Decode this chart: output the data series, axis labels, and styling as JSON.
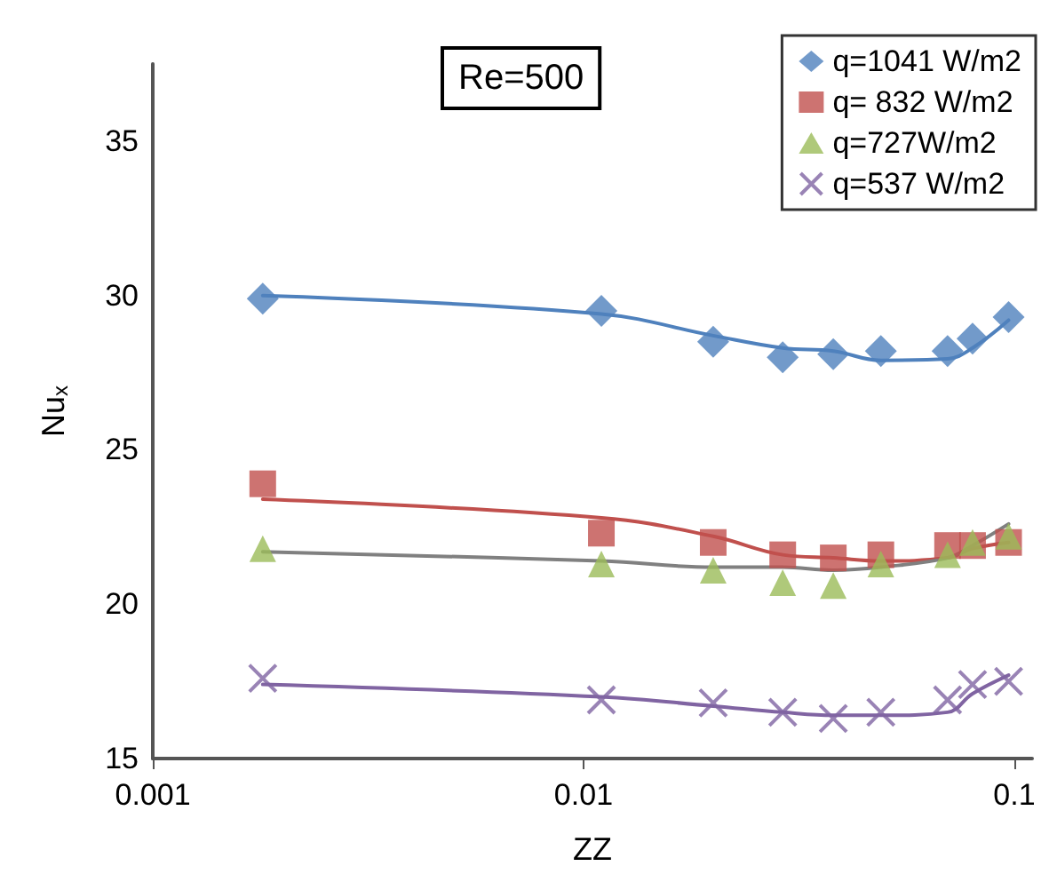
{
  "chart_data": {
    "type": "scatter",
    "xlabel": "ZZ",
    "ylabel": "Nu$_{x}$",
    "annotations": [
      "Re=500"
    ],
    "x": [
      0.0018,
      0.011,
      0.02,
      0.029,
      0.038,
      0.049,
      0.07,
      0.08,
      0.097
    ],
    "series": [
      {
        "name": "q=1041 W/m2",
        "color": "#4f81bd",
        "marker": "diamond",
        "values": [
          29.9,
          29.5,
          28.5,
          28.0,
          28.1,
          28.2,
          28.2,
          28.6,
          29.3
        ]
      },
      {
        "name": "q= 832 W/m2",
        "color": "#c0504d",
        "marker": "square",
        "values": [
          23.9,
          22.3,
          22.0,
          21.6,
          21.5,
          21.6,
          21.9,
          21.9,
          22.0
        ]
      },
      {
        "name": "q=727W/m2",
        "color": "#9bbb59",
        "marker": "triangle",
        "values": [
          21.8,
          21.3,
          21.1,
          20.7,
          20.6,
          21.3,
          21.6,
          22.0,
          22.2
        ]
      },
      {
        "name": "q=537 W/m2",
        "color": "#8064a2",
        "marker": "cross",
        "values": [
          17.6,
          16.9,
          16.8,
          16.5,
          16.3,
          16.5,
          16.9,
          17.4,
          17.5
        ]
      },
      {
        "type": "line",
        "color": "#4f81bd",
        "marker": "none",
        "values": [
          30.0,
          29.4,
          28.7,
          28.3,
          28.2,
          27.9,
          27.95,
          28.3,
          29.2
        ]
      },
      {
        "type": "line",
        "color": "#c0504d",
        "marker": "none",
        "values": [
          23.4,
          22.8,
          22.2,
          21.6,
          21.5,
          21.4,
          21.5,
          21.8,
          22.0
        ]
      },
      {
        "type": "line",
        "color": "#808080",
        "marker": "none",
        "values": [
          21.7,
          21.4,
          21.2,
          21.2,
          21.1,
          21.2,
          21.5,
          21.9,
          22.6
        ]
      },
      {
        "type": "line",
        "color": "#8064a2",
        "marker": "none",
        "values": [
          17.4,
          17.0,
          16.7,
          16.5,
          16.4,
          16.4,
          16.5,
          17.1,
          17.7
        ]
      }
    ],
    "log": "x",
    "xlim": [
      0.001,
      0.11
    ],
    "xticks": [
      0.001,
      0.01,
      0.1
    ],
    "ylim": [
      15,
      37.5
    ],
    "yticks": [
      15,
      20,
      25,
      30,
      35
    ],
    "grid": false,
    "legend": "top right"
  }
}
